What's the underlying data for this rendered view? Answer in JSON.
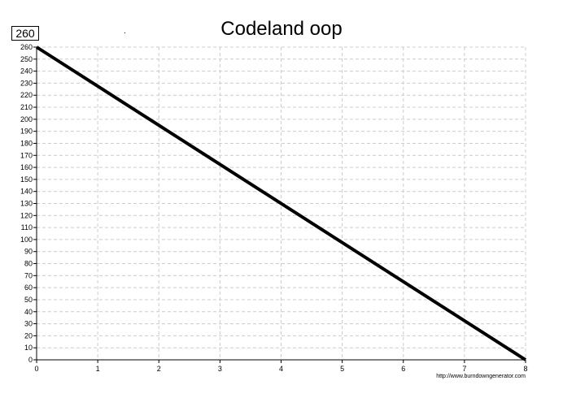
{
  "chart_data": {
    "type": "line",
    "title": "Codeland oop",
    "total_label": "260",
    "source": "http://www.burndowngenerator.com",
    "x": [
      0,
      8
    ],
    "series": [
      {
        "values": [
          260,
          0
        ],
        "color": "#000000"
      }
    ],
    "xlim": [
      0,
      8
    ],
    "ylim": [
      0,
      260
    ],
    "x_ticks": [
      "0",
      "1",
      "2",
      "3",
      "4",
      "5",
      "6",
      "7",
      "8"
    ],
    "y_ticks": [
      "0",
      "10",
      "20",
      "30",
      "40",
      "50",
      "60",
      "70",
      "80",
      "90",
      "100",
      "110",
      "120",
      "130",
      "140",
      "150",
      "160",
      "170",
      "180",
      "190",
      "200",
      "210",
      "220",
      "230",
      "240",
      "250",
      "260"
    ],
    "grid": true,
    "grid_style": "dashed",
    "colors": {
      "line": "#000000",
      "grid": "#cccccc",
      "axis": "#000000"
    }
  }
}
